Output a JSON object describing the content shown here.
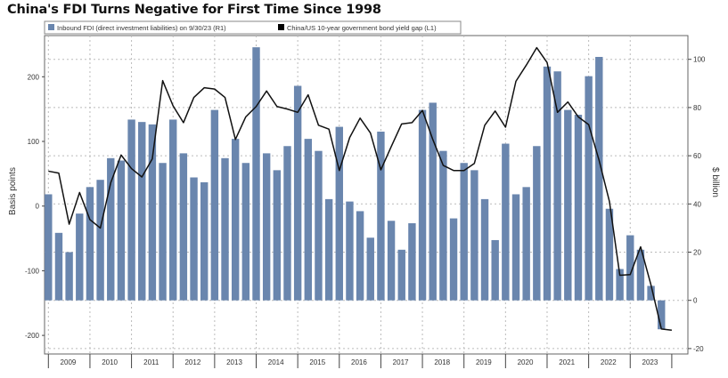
{
  "chart_data": {
    "type": "bar",
    "title": "China's FDI Turns Negative for First Time Since 1998",
    "ylabel_left": "Basis points",
    "ylabel_right": "$ billion",
    "ylim_left": [
      -230,
      250
    ],
    "ylim_right": [
      -22,
      108
    ],
    "yticks_left": [
      200,
      100,
      0,
      -100,
      -200
    ],
    "yticks_right": [
      100,
      80,
      60,
      40,
      20,
      0,
      -20
    ],
    "grid": true,
    "legend_position": "top-left",
    "years": [
      "2009",
      "2010",
      "2011",
      "2012",
      "2013",
      "2014",
      "2015",
      "2016",
      "2017",
      "2018",
      "2019",
      "2020",
      "2021",
      "2022",
      "2023"
    ],
    "colors": {
      "bar": "#6a86ae",
      "line": "#111111"
    },
    "series": [
      {
        "name": "Inbound FDI (direct investment liabilities) on 9/30/23 (R1)",
        "type": "bar",
        "axis": "right",
        "values": [
          44,
          28,
          20,
          36,
          47,
          50,
          59,
          58,
          75,
          74,
          73,
          57,
          75,
          61,
          51,
          49,
          79,
          59,
          67,
          57,
          105,
          61,
          54,
          64,
          89,
          67,
          62,
          42,
          72,
          41,
          37,
          26,
          70,
          33,
          21,
          32,
          79,
          82,
          62,
          34,
          57,
          54,
          42,
          25,
          65,
          44,
          47,
          64,
          97,
          95,
          79,
          77,
          93,
          101,
          38,
          13,
          27,
          21,
          6,
          -12
        ]
      },
      {
        "name": "China/US 10-year government bond yield gap (L1)",
        "type": "line",
        "axis": "left",
        "values": [
          54,
          51,
          -28,
          21,
          -21,
          -34,
          36,
          79,
          58,
          45,
          73,
          194,
          155,
          129,
          168,
          183,
          181,
          168,
          103,
          138,
          154,
          178,
          154,
          150,
          145,
          172,
          125,
          119,
          55,
          106,
          136,
          113,
          56,
          92,
          127,
          129,
          148,
          103,
          63,
          55,
          55,
          66,
          125,
          147,
          122,
          193,
          218,
          245,
          222,
          145,
          161,
          138,
          126,
          71,
          7,
          -107,
          -106,
          -63,
          -122,
          -190,
          -192
        ]
      }
    ]
  }
}
